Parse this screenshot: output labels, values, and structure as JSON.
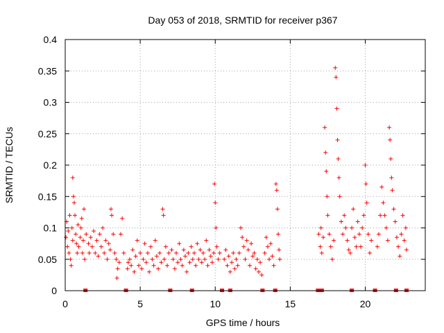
{
  "chart_data": {
    "type": "scatter",
    "title": "Day 053 of 2018, SRMTID for receiver p367",
    "xlabel": "GPS time / hours",
    "ylabel": "SRMTID / TECUs",
    "xlim": [
      0,
      24
    ],
    "ylim": [
      0,
      0.4
    ],
    "x_ticks": [
      0,
      5,
      10,
      15,
      20
    ],
    "x_tick_labels": [
      "0",
      "5",
      "10",
      "15",
      "20"
    ],
    "y_ticks": [
      0,
      0.05,
      0.1,
      0.15,
      0.2,
      0.25,
      0.3,
      0.35,
      0.4
    ],
    "y_tick_labels": [
      "0",
      "0.05",
      "0.1",
      "0.15",
      "0.2",
      "0.25",
      "0.3",
      "0.35",
      "0.4"
    ],
    "grid": true,
    "marker": "+",
    "color": "#ff0000",
    "series": [
      {
        "name": "SRMTID",
        "points": [
          [
            0.05,
            0.085
          ],
          [
            0.1,
            0.11
          ],
          [
            0.15,
            0.07
          ],
          [
            0.2,
            0.095
          ],
          [
            0.25,
            0.06
          ],
          [
            0.3,
            0.12
          ],
          [
            0.35,
            0.05
          ],
          [
            0.4,
            0.04
          ],
          [
            0.45,
            0.1
          ],
          [
            0.5,
            0.08
          ],
          [
            0.5,
            0.18
          ],
          [
            0.55,
            0.15
          ],
          [
            0.6,
            0.14
          ],
          [
            0.65,
            0.12
          ],
          [
            0.7,
            0.09
          ],
          [
            0.75,
            0.075
          ],
          [
            0.8,
            0.06
          ],
          [
            0.85,
            0.105
          ],
          [
            0.9,
            0.07
          ],
          [
            1.0,
            0.085
          ],
          [
            1.05,
            0.1
          ],
          [
            1.1,
            0.115
          ],
          [
            1.15,
            0.06
          ],
          [
            1.2,
            0.08
          ],
          [
            1.25,
            0.13
          ],
          [
            1.3,
            0.05
          ],
          [
            1.4,
            0.09
          ],
          [
            1.55,
            0.075
          ],
          [
            1.6,
            0.06
          ],
          [
            1.7,
            0.085
          ],
          [
            1.8,
            0.07
          ],
          [
            1.9,
            0.095
          ],
          [
            2.0,
            0.06
          ],
          [
            2.1,
            0.08
          ],
          [
            2.2,
            0.055
          ],
          [
            2.3,
            0.09
          ],
          [
            2.4,
            0.07
          ],
          [
            2.5,
            0.1
          ],
          [
            2.6,
            0.06
          ],
          [
            2.7,
            0.08
          ],
          [
            2.8,
            0.05
          ],
          [
            2.9,
            0.075
          ],
          [
            3.0,
            0.065
          ],
          [
            3.05,
            0.13
          ],
          [
            3.1,
            0.12
          ],
          [
            3.2,
            0.09
          ],
          [
            3.3,
            0.06
          ],
          [
            3.4,
            0.05
          ],
          [
            3.45,
            0.02
          ],
          [
            3.5,
            0.035
          ],
          [
            3.6,
            0.045
          ],
          [
            3.7,
            0.09
          ],
          [
            3.8,
            0.115
          ],
          [
            3.9,
            0.06
          ],
          [
            4.15,
            0.035
          ],
          [
            4.2,
            0.045
          ],
          [
            4.3,
            0.05
          ],
          [
            4.4,
            0.04
          ],
          [
            4.5,
            0.065
          ],
          [
            4.6,
            0.03
          ],
          [
            4.7,
            0.055
          ],
          [
            4.8,
            0.08
          ],
          [
            4.9,
            0.04
          ],
          [
            5.0,
            0.06
          ],
          [
            5.1,
            0.035
          ],
          [
            5.2,
            0.05
          ],
          [
            5.3,
            0.075
          ],
          [
            5.4,
            0.045
          ],
          [
            5.5,
            0.06
          ],
          [
            5.6,
            0.03
          ],
          [
            5.7,
            0.07
          ],
          [
            5.8,
            0.05
          ],
          [
            5.9,
            0.04
          ],
          [
            6.0,
            0.08
          ],
          [
            6.1,
            0.055
          ],
          [
            6.2,
            0.035
          ],
          [
            6.3,
            0.06
          ],
          [
            6.4,
            0.045
          ],
          [
            6.5,
            0.13
          ],
          [
            6.55,
            0.12
          ],
          [
            6.6,
            0.05
          ],
          [
            6.7,
            0.07
          ],
          [
            6.8,
            0.04
          ],
          [
            6.9,
            0.06
          ],
          [
            7.1,
            0.065
          ],
          [
            7.2,
            0.05
          ],
          [
            7.3,
            0.035
          ],
          [
            7.4,
            0.06
          ],
          [
            7.5,
            0.045
          ],
          [
            7.6,
            0.075
          ],
          [
            7.7,
            0.05
          ],
          [
            7.8,
            0.04
          ],
          [
            7.9,
            0.065
          ],
          [
            8.0,
            0.055
          ],
          [
            8.1,
            0.03
          ],
          [
            8.2,
            0.06
          ],
          [
            8.3,
            0.045
          ],
          [
            8.4,
            0.07
          ],
          [
            8.5,
            0.05
          ],
          [
            8.6,
            0.06
          ],
          [
            8.7,
            0.04
          ],
          [
            8.8,
            0.075
          ],
          [
            8.9,
            0.05
          ],
          [
            9.0,
            0.065
          ],
          [
            9.1,
            0.045
          ],
          [
            9.2,
            0.06
          ],
          [
            9.3,
            0.05
          ],
          [
            9.4,
            0.08
          ],
          [
            9.5,
            0.04
          ],
          [
            9.6,
            0.065
          ],
          [
            9.7,
            0.055
          ],
          [
            9.8,
            0.045
          ],
          [
            9.9,
            0.06
          ],
          [
            9.95,
            0.17
          ],
          [
            10.0,
            0.14
          ],
          [
            10.05,
            0.1
          ],
          [
            10.1,
            0.07
          ],
          [
            10.2,
            0.05
          ],
          [
            10.3,
            0.06
          ],
          [
            10.6,
            0.05
          ],
          [
            10.7,
            0.065
          ],
          [
            10.8,
            0.04
          ],
          [
            10.9,
            0.055
          ],
          [
            11.0,
            0.03
          ],
          [
            11.1,
            0.045
          ],
          [
            11.2,
            0.06
          ],
          [
            11.3,
            0.035
          ],
          [
            11.4,
            0.05
          ],
          [
            11.5,
            0.04
          ],
          [
            11.6,
            0.06
          ],
          [
            11.7,
            0.1
          ],
          [
            11.8,
            0.085
          ],
          [
            11.9,
            0.07
          ],
          [
            12.0,
            0.05
          ],
          [
            12.1,
            0.08
          ],
          [
            12.2,
            0.065
          ],
          [
            12.3,
            0.04
          ],
          [
            12.4,
            0.075
          ],
          [
            12.5,
            0.055
          ],
          [
            12.6,
            0.06
          ],
          [
            12.7,
            0.035
          ],
          [
            12.8,
            0.05
          ],
          [
            12.9,
            0.03
          ],
          [
            13.0,
            0.045
          ],
          [
            13.1,
            0.025
          ],
          [
            13.3,
            0.06
          ],
          [
            13.4,
            0.085
          ],
          [
            13.5,
            0.07
          ],
          [
            13.6,
            0.05
          ],
          [
            13.7,
            0.075
          ],
          [
            13.8,
            0.055
          ],
          [
            13.9,
            0.04
          ],
          [
            14.05,
            0.17
          ],
          [
            14.1,
            0.16
          ],
          [
            14.15,
            0.13
          ],
          [
            14.2,
            0.09
          ],
          [
            14.25,
            0.065
          ],
          [
            14.3,
            0.05
          ],
          [
            16.9,
            0.09
          ],
          [
            17.0,
            0.07
          ],
          [
            17.05,
            0.1
          ],
          [
            17.1,
            0.06
          ],
          [
            17.2,
            0.085
          ],
          [
            17.3,
            0.26
          ],
          [
            17.35,
            0.22
          ],
          [
            17.4,
            0.19
          ],
          [
            17.45,
            0.15
          ],
          [
            17.5,
            0.12
          ],
          [
            17.6,
            0.09
          ],
          [
            17.7,
            0.07
          ],
          [
            17.8,
            0.05
          ],
          [
            17.9,
            0.08
          ],
          [
            18.0,
            0.355
          ],
          [
            18.05,
            0.34
          ],
          [
            18.1,
            0.29
          ],
          [
            18.15,
            0.24
          ],
          [
            18.2,
            0.21
          ],
          [
            18.25,
            0.18
          ],
          [
            18.3,
            0.15
          ],
          [
            18.4,
            0.11
          ],
          [
            18.5,
            0.09
          ],
          [
            18.6,
            0.12
          ],
          [
            18.7,
            0.1
          ],
          [
            18.8,
            0.08
          ],
          [
            18.9,
            0.065
          ],
          [
            19.0,
            0.06
          ],
          [
            19.1,
            0.1
          ],
          [
            19.2,
            0.13
          ],
          [
            19.3,
            0.085
          ],
          [
            19.4,
            0.07
          ],
          [
            19.5,
            0.11
          ],
          [
            19.6,
            0.09
          ],
          [
            19.7,
            0.07
          ],
          [
            19.8,
            0.1
          ],
          [
            19.9,
            0.12
          ],
          [
            20.0,
            0.2
          ],
          [
            20.05,
            0.17
          ],
          [
            20.1,
            0.14
          ],
          [
            20.2,
            0.09
          ],
          [
            20.3,
            0.06
          ],
          [
            20.4,
            0.08
          ],
          [
            20.8,
            0.07
          ],
          [
            20.9,
            0.09
          ],
          [
            21.0,
            0.12
          ],
          [
            21.1,
            0.165
          ],
          [
            21.2,
            0.14
          ],
          [
            21.3,
            0.12
          ],
          [
            21.4,
            0.1
          ],
          [
            21.5,
            0.08
          ],
          [
            21.6,
            0.26
          ],
          [
            21.65,
            0.24
          ],
          [
            21.7,
            0.21
          ],
          [
            21.75,
            0.18
          ],
          [
            21.8,
            0.16
          ],
          [
            21.9,
            0.13
          ],
          [
            22.0,
            0.11
          ],
          [
            22.1,
            0.085
          ],
          [
            22.2,
            0.07
          ],
          [
            22.3,
            0.055
          ],
          [
            22.4,
            0.09
          ],
          [
            22.5,
            0.12
          ],
          [
            22.6,
            0.08
          ],
          [
            22.7,
            0.1
          ],
          [
            22.75,
            0.065
          ]
        ]
      }
    ],
    "gap_markers_x": [
      1.35,
      4.05,
      7.0,
      8.45,
      10.45,
      11.0,
      13.15,
      14.0,
      16.85,
      17.1,
      19.1,
      20.65,
      22.05,
      22.75
    ]
  }
}
